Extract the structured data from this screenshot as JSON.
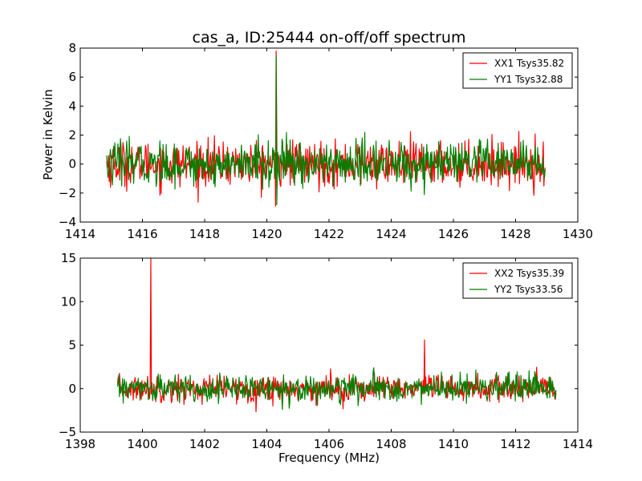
{
  "figure": {
    "title": "cas_a, ID:25444 on-off/off spectrum",
    "ylabel": "Power in Kelvin",
    "xlabel": "Frequency (MHz)"
  },
  "chart_data": [
    {
      "type": "line",
      "xlim": [
        1414,
        1430
      ],
      "ylim": [
        -4,
        8
      ],
      "xticks": [
        1414,
        1416,
        1418,
        1420,
        1422,
        1424,
        1426,
        1428,
        1430
      ],
      "yticks": [
        -4,
        -2,
        0,
        2,
        4,
        6,
        8
      ],
      "x_range": [
        1414.85,
        1428.95
      ],
      "legend": "top-right",
      "grid": false,
      "series": [
        {
          "name": "XX1 Tsys35.82",
          "color": "#ff0000",
          "noise_sigma": 0.75,
          "noise_clip": 3.0,
          "spikes": [
            {
              "x": 1420.3,
              "y": 7.8
            },
            {
              "x": 1420.28,
              "y": -2.9
            }
          ]
        },
        {
          "name": "YY1 Tsys32.88",
          "color": "#008000",
          "noise_sigma": 0.75,
          "noise_clip": 2.7,
          "spikes": [
            {
              "x": 1420.3,
              "y": 7.5
            },
            {
              "x": 1420.32,
              "y": -2.8
            }
          ]
        }
      ]
    },
    {
      "type": "line",
      "xlim": [
        1398,
        1414
      ],
      "ylim": [
        -5,
        15
      ],
      "xticks": [
        1398,
        1400,
        1402,
        1404,
        1406,
        1408,
        1410,
        1412,
        1414
      ],
      "yticks": [
        -5,
        0,
        5,
        10,
        15
      ],
      "x_range": [
        1399.2,
        1413.3
      ],
      "legend": "top-right",
      "grid": false,
      "series": [
        {
          "name": "XX2 Tsys35.39",
          "color": "#ff0000",
          "noise_sigma": 0.75,
          "noise_clip": 3.0,
          "spikes": [
            {
              "x": 1400.27,
              "y": 15.0
            },
            {
              "x": 1409.07,
              "y": 5.6
            }
          ]
        },
        {
          "name": "YY2 Tsys33.56",
          "color": "#008000",
          "noise_sigma": 0.75,
          "noise_clip": 2.4,
          "spikes": []
        }
      ]
    }
  ]
}
